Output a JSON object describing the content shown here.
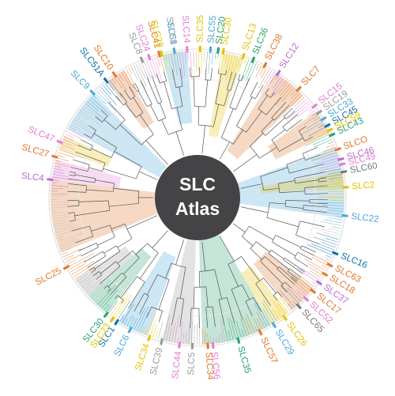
{
  "center": {
    "line1": "SLC",
    "line2": "Atlas"
  },
  "families": [
    {
      "name": "SLC41",
      "color": "#e0782a",
      "ang": -105
    },
    {
      "name": "SLC58",
      "color": "#9a9a9a",
      "ang": -99
    },
    {
      "name": "SLC14",
      "color": "#e27dd0",
      "ang": -94
    },
    {
      "name": "SLC35",
      "color": "#e6c200",
      "ang": -89
    },
    {
      "name": "SLC55",
      "color": "#4aa7d9",
      "ang": -85
    },
    {
      "name": "SLC20",
      "color": "#2aa170",
      "ang": -82
    },
    {
      "name": "SLC30",
      "color": "#e6c200",
      "ang": -80
    },
    {
      "name": "SLC13",
      "color": "#e6c200",
      "ang": -72
    },
    {
      "name": "SLC36",
      "color": "#2aa170",
      "ang": -68
    },
    {
      "name": "SLC38",
      "color": "#e0782a",
      "ang": -63
    },
    {
      "name": "SLC12",
      "color": "#b86bd0",
      "ang": -57
    },
    {
      "name": "SLC7",
      "color": "#e0782a",
      "ang": -47
    },
    {
      "name": "SLC15",
      "color": "#e27dd0",
      "ang": -38
    },
    {
      "name": "SLC19",
      "color": "#9a9a9a",
      "ang": -35
    },
    {
      "name": "SLC33",
      "color": "#4aa7d9",
      "ang": -32
    },
    {
      "name": "SLC45",
      "color": "#0d6fa8",
      "ang": -29
    },
    {
      "name": "SLC59",
      "color": "#e6c200",
      "ang": -27
    },
    {
      "name": "SLC43",
      "color": "#2aa170",
      "ang": -25
    },
    {
      "name": "SLCO",
      "color": "#e0782a",
      "ang": -19
    },
    {
      "name": "SLC46",
      "color": "#b86bd0",
      "ang": -15
    },
    {
      "name": "SLC49",
      "color": "#e27dd0",
      "ang": -13
    },
    {
      "name": "SLC60",
      "color": "#777777",
      "ang": -10
    },
    {
      "name": "SLC2",
      "color": "#e6c200",
      "ang": -4
    },
    {
      "name": "SLC22",
      "color": "#4aa7d9",
      "ang": 7
    },
    {
      "name": "SLC16",
      "color": "#0d6fa8",
      "ang": 22
    },
    {
      "name": "SLC63",
      "color": "#e0782a",
      "ang": 27
    },
    {
      "name": "SLC18",
      "color": "#e0782a",
      "ang": 31
    },
    {
      "name": "SLC37",
      "color": "#b86bd0",
      "ang": 35
    },
    {
      "name": "SLC17",
      "color": "#e0782a",
      "ang": 39
    },
    {
      "name": "SLC52",
      "color": "#e27dd0",
      "ang": 43
    },
    {
      "name": "SLC65",
      "color": "#777777",
      "ang": 47
    },
    {
      "name": "SLC26",
      "color": "#e6c200",
      "ang": 54
    },
    {
      "name": "SLC29",
      "color": "#4aa7d9",
      "ang": 59
    },
    {
      "name": "SLC57",
      "color": "#e0782a",
      "ang": 65
    },
    {
      "name": "SLC35",
      "color": "#2aa170",
      "ang": 74
    },
    {
      "name": "SLC56",
      "color": "#e27dd0",
      "ang": 84
    },
    {
      "name": "SLC34",
      "color": "#e0782a",
      "ang": 86
    },
    {
      "name": "SLC5",
      "color": "#9a9a9a",
      "ang": 92
    },
    {
      "name": "SLC44",
      "color": "#e27dd0",
      "ang": 97
    },
    {
      "name": "SLC39",
      "color": "#9a9a9a",
      "ang": 104
    },
    {
      "name": "SLC34",
      "color": "#e6c200",
      "ang": 109
    },
    {
      "name": "SLC6",
      "color": "#4aa7d9",
      "ang": 117
    },
    {
      "name": "SLC1",
      "color": "#0d6fa8",
      "ang": 123
    },
    {
      "name": "SLC23",
      "color": "#e6c200",
      "ang": 125
    },
    {
      "name": "SLC30",
      "color": "#2aa170",
      "ang": 128
    },
    {
      "name": "SLC25",
      "color": "#e0782a",
      "ang": 152
    },
    {
      "name": "SLC4",
      "color": "#b86bd0",
      "ang": 187
    },
    {
      "name": "SLC27",
      "color": "#e0782a",
      "ang": 196
    },
    {
      "name": "SLC47",
      "color": "#e27dd0",
      "ang": 202
    },
    {
      "name": "SLC9",
      "color": "#4aa7d9",
      "ang": 225
    },
    {
      "name": "SLC51A",
      "color": "#0d6fa8",
      "ang": 232
    },
    {
      "name": "SLC10",
      "color": "#e0782a",
      "ang": 236
    },
    {
      "name": "SLC8",
      "color": "#9a9a9a",
      "ang": 248
    },
    {
      "name": "SLC24",
      "color": "#e27dd0",
      "ang": 251
    },
    {
      "name": "SLC28",
      "color": "#e6c200",
      "ang": 256
    },
    {
      "name": "SLC1",
      "color": "#4aa7d9",
      "ang": 261
    }
  ],
  "clades": [
    {
      "from": 208,
      "to": 225,
      "color": "#4aa7d9",
      "inner": 55
    },
    {
      "from": 158,
      "to": 187,
      "color": "#e0782a",
      "inner": 50
    },
    {
      "from": -20,
      "to": 8,
      "color": "#4aa7d9",
      "inner": 42
    },
    {
      "from": 60,
      "to": 88,
      "color": "#2aa170",
      "inner": 45
    },
    {
      "from": 92,
      "to": 104,
      "color": "#9a9a9a",
      "inner": 55
    },
    {
      "from": 110,
      "to": 122,
      "color": "#4aa7d9",
      "inner": 80
    },
    {
      "from": -58,
      "to": -44,
      "color": "#e0782a",
      "inner": 70
    },
    {
      "from": -80,
      "to": -72,
      "color": "#e6c200",
      "inner": 80
    },
    {
      "from": 187,
      "to": 195,
      "color": "#e27dd0",
      "inner": 100
    },
    {
      "from": 256,
      "to": 266,
      "color": "#4aa7d9",
      "inner": 95
    },
    {
      "from": 38,
      "to": 50,
      "color": "#e0782a",
      "inner": 110
    },
    {
      "from": -10,
      "to": -4,
      "color": "#e6c200",
      "inner": 80
    },
    {
      "from": 52,
      "to": 60,
      "color": "#e6c200",
      "inner": 110
    },
    {
      "from": 128,
      "to": 138,
      "color": "#2aa170",
      "inner": 95
    },
    {
      "from": -36,
      "to": -26,
      "color": "#e0782a",
      "inner": 110
    },
    {
      "from": 232,
      "to": 240,
      "color": "#e0782a",
      "inner": 110
    },
    {
      "from": 199,
      "to": 205,
      "color": "#e6c200",
      "inner": 120
    },
    {
      "from": 138,
      "to": 146,
      "color": "#9a9a9a",
      "inner": 110
    }
  ]
}
